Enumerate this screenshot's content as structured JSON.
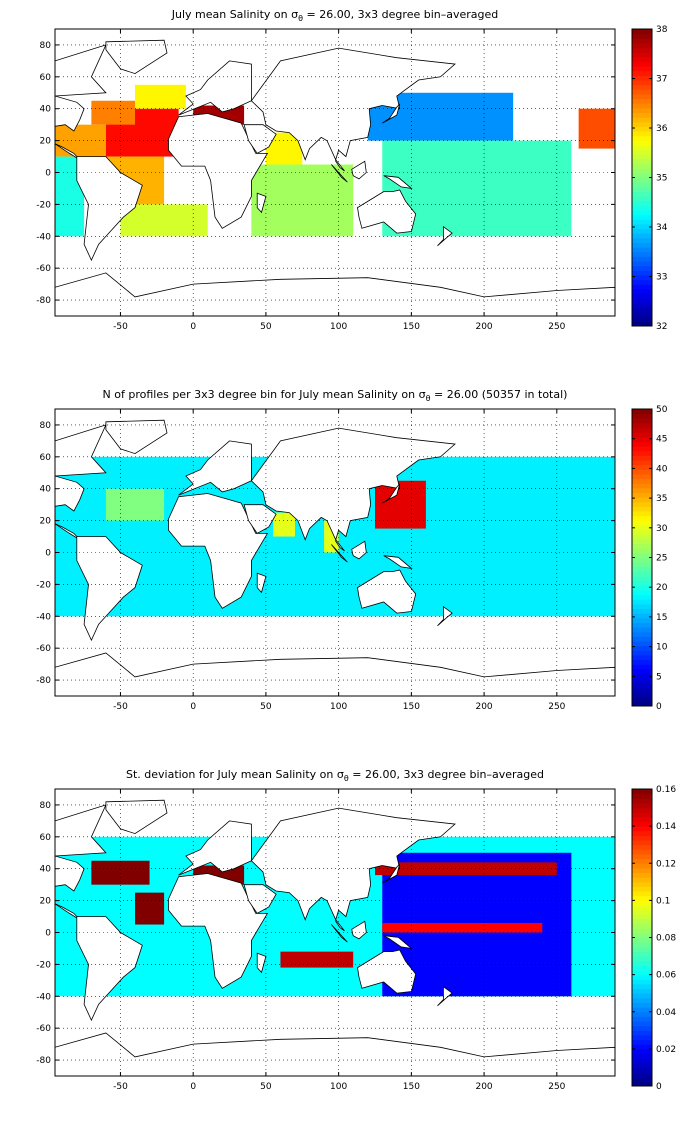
{
  "chart_data": [
    {
      "type": "heatmap",
      "title_prefix": "July mean Salinity on ",
      "title_sigma": "σ",
      "title_sub": "θ",
      "title_suffix": " = 26.00, 3x3 degree bin–averaged",
      "xlim": [
        -95,
        290
      ],
      "ylim": [
        -90,
        90
      ],
      "xticks": [
        "-50",
        "0",
        "50",
        "100",
        "150",
        "200",
        "250"
      ],
      "xtick_values": [
        -50,
        0,
        50,
        100,
        150,
        200,
        250
      ],
      "yticks": [
        "80",
        "60",
        "40",
        "20",
        "0",
        "-20",
        "-40",
        "-60",
        "-80"
      ],
      "ytick_values": [
        80,
        60,
        40,
        20,
        0,
        -20,
        -40,
        -60,
        -80
      ],
      "grid": true,
      "colormap": "jet",
      "clim": [
        32,
        38
      ],
      "cbar_ticks": [
        "38",
        "37",
        "36",
        "35",
        "34",
        "33",
        "32"
      ],
      "cbar_tick_values": [
        38,
        37,
        36,
        35,
        34,
        33,
        32
      ],
      "regions": [
        {
          "lon": [
            -95,
            -60
          ],
          "lat": [
            10,
            30
          ],
          "value": 36.3
        },
        {
          "lon": [
            -60,
            -10
          ],
          "lat": [
            10,
            40
          ],
          "value": 37.2
        },
        {
          "lon": [
            -70,
            -40
          ],
          "lat": [
            30,
            45
          ],
          "value": 36.5
        },
        {
          "lon": [
            -40,
            -5
          ],
          "lat": [
            40,
            55
          ],
          "value": 35.8
        },
        {
          "lon": [
            0,
            35
          ],
          "lat": [
            30,
            42
          ],
          "value": 37.8
        },
        {
          "lon": [
            -60,
            -20
          ],
          "lat": [
            -20,
            10
          ],
          "value": 36.2
        },
        {
          "lon": [
            -50,
            10
          ],
          "lat": [
            -40,
            -20
          ],
          "value": 35.5
        },
        {
          "lon": [
            40,
            110
          ],
          "lat": [
            -40,
            5
          ],
          "value": 35.2
        },
        {
          "lon": [
            50,
            75
          ],
          "lat": [
            5,
            25
          ],
          "value": 35.8
        },
        {
          "lon": [
            120,
            220
          ],
          "lat": [
            20,
            50
          ],
          "value": 33.6
        },
        {
          "lon": [
            130,
            260
          ],
          "lat": [
            -40,
            20
          ],
          "value": 34.6
        },
        {
          "lon": [
            -95,
            -75
          ],
          "lat": [
            -40,
            10
          ],
          "value": 34.4
        },
        {
          "lon": [
            265,
            290
          ],
          "lat": [
            15,
            40
          ],
          "value": 36.8
        }
      ]
    },
    {
      "type": "heatmap",
      "title_prefix": "N of profiles per 3x3 degree bin for July mean Salinity on ",
      "title_sigma": "σ",
      "title_sub": "θ",
      "title_suffix": " = 26.00 (50357 in total)",
      "xlim": [
        -95,
        290
      ],
      "ylim": [
        -90,
        90
      ],
      "xticks": [
        "-50",
        "0",
        "50",
        "100",
        "150",
        "200",
        "250"
      ],
      "xtick_values": [
        -50,
        0,
        50,
        100,
        150,
        200,
        250
      ],
      "yticks": [
        "80",
        "60",
        "40",
        "20",
        "0",
        "-20",
        "-40",
        "-60",
        "-80"
      ],
      "ytick_values": [
        80,
        60,
        40,
        20,
        0,
        -20,
        -40,
        -60,
        -80
      ],
      "grid": true,
      "colormap": "jet",
      "clim": [
        0,
        50
      ],
      "cbar_ticks": [
        "50",
        "45",
        "40",
        "35",
        "30",
        "25",
        "20",
        "15",
        "10",
        "5",
        "0"
      ],
      "cbar_tick_values": [
        50,
        45,
        40,
        35,
        30,
        25,
        20,
        15,
        10,
        5,
        0
      ],
      "regions": [
        {
          "lon": [
            -95,
            290
          ],
          "lat": [
            -40,
            60
          ],
          "value": 18
        },
        {
          "lon": [
            125,
            160
          ],
          "lat": [
            15,
            45
          ],
          "value": 45
        },
        {
          "lon": [
            55,
            70
          ],
          "lat": [
            10,
            25
          ],
          "value": 30
        },
        {
          "lon": [
            90,
            100
          ],
          "lat": [
            0,
            20
          ],
          "value": 30
        },
        {
          "lon": [
            -60,
            -20
          ],
          "lat": [
            20,
            40
          ],
          "value": 25
        }
      ]
    },
    {
      "type": "heatmap",
      "title_prefix": "St. deviation for July mean Salinity on ",
      "title_sigma": "σ",
      "title_sub": "θ",
      "title_suffix": " = 26.00, 3x3 degree bin–averaged",
      "xlim": [
        -95,
        290
      ],
      "ylim": [
        -90,
        90
      ],
      "xticks": [
        "-50",
        "0",
        "50",
        "100",
        "150",
        "200",
        "250"
      ],
      "xtick_values": [
        -50,
        0,
        50,
        100,
        150,
        200,
        250
      ],
      "yticks": [
        "80",
        "60",
        "40",
        "20",
        "0",
        "-20",
        "-40",
        "-60",
        "-80"
      ],
      "ytick_values": [
        80,
        60,
        40,
        20,
        0,
        -20,
        -40,
        -60,
        -80
      ],
      "grid": true,
      "colormap": "jet",
      "clim": [
        0,
        0.16
      ],
      "cbar_ticks": [
        "0.16",
        "0.14",
        "0.12",
        "0.1",
        "0.08",
        "0.06",
        "0.04",
        "0.02",
        "0"
      ],
      "cbar_tick_values": [
        0.16,
        0.14,
        0.12,
        0.1,
        0.08,
        0.06,
        0.04,
        0.02,
        0
      ],
      "regions": [
        {
          "lon": [
            -95,
            290
          ],
          "lat": [
            -40,
            60
          ],
          "value": 0.06
        },
        {
          "lon": [
            130,
            260
          ],
          "lat": [
            -40,
            50
          ],
          "value": 0.02
        },
        {
          "lon": [
            125,
            250
          ],
          "lat": [
            36,
            44
          ],
          "value": 0.15
        },
        {
          "lon": [
            130,
            240
          ],
          "lat": [
            0,
            6
          ],
          "value": 0.14
        },
        {
          "lon": [
            -70,
            -30
          ],
          "lat": [
            30,
            45
          ],
          "value": 0.16
        },
        {
          "lon": [
            -40,
            -20
          ],
          "lat": [
            5,
            25
          ],
          "value": 0.16
        },
        {
          "lon": [
            60,
            110
          ],
          "lat": [
            -22,
            -12
          ],
          "value": 0.15
        },
        {
          "lon": [
            0,
            35
          ],
          "lat": [
            30,
            42
          ],
          "value": 0.16
        }
      ]
    }
  ]
}
